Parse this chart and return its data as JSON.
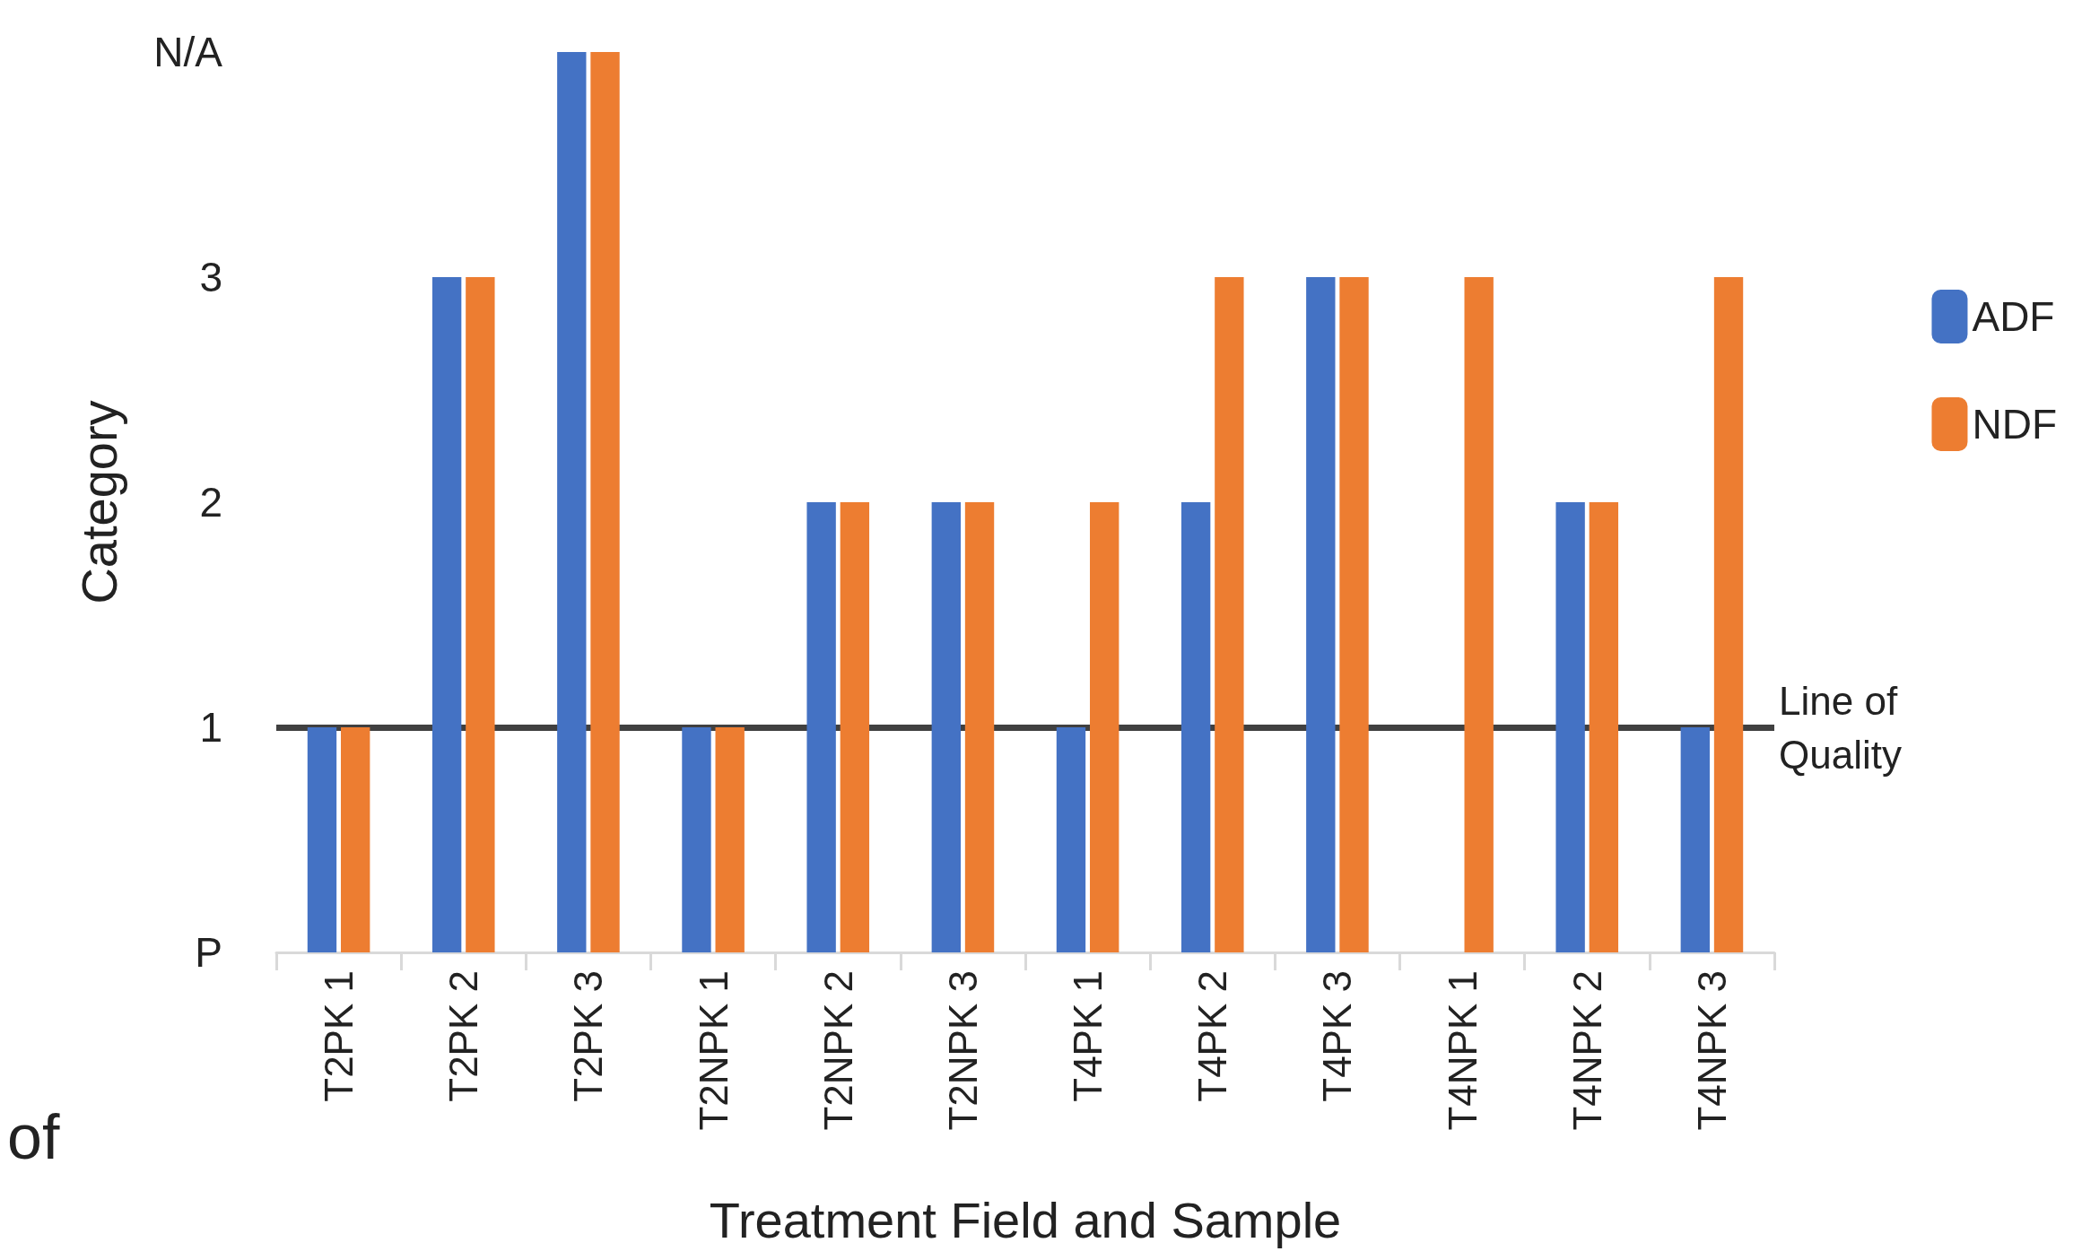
{
  "chart_data": {
    "type": "bar",
    "xlabel": "Treatment Field and Sample",
    "ylabel": "Category",
    "categories": [
      "T2PK 1",
      "T2PK 2",
      "T2PK 3",
      "T2NPK 1",
      "T2NPK 2",
      "T2NPK 3",
      "T4PK 1",
      "T4PK 2",
      "T4PK 3",
      "T4NPK 1",
      "T4NPK 2",
      "T4NPK 3"
    ],
    "series": [
      {
        "name": "ADF",
        "color": "#4472c4",
        "values": [
          1,
          3,
          4,
          1,
          2,
          2,
          1,
          2,
          3,
          null,
          2,
          1
        ]
      },
      {
        "name": "NDF",
        "color": "#ed7d31",
        "values": [
          1,
          3,
          4,
          1,
          2,
          2,
          2,
          3,
          3,
          3,
          2,
          3
        ]
      }
    ],
    "ylim": [
      0,
      4
    ],
    "yticks": [
      {
        "value": 0,
        "label": "P"
      },
      1,
      2,
      3,
      {
        "value": 4,
        "label": "N/A"
      }
    ],
    "ref_lines": [
      {
        "axis": "y",
        "value": 1,
        "label": "Line of Quality",
        "color": "#404040"
      }
    ],
    "annotations": [
      "of"
    ],
    "grid": false,
    "legend": "right"
  }
}
